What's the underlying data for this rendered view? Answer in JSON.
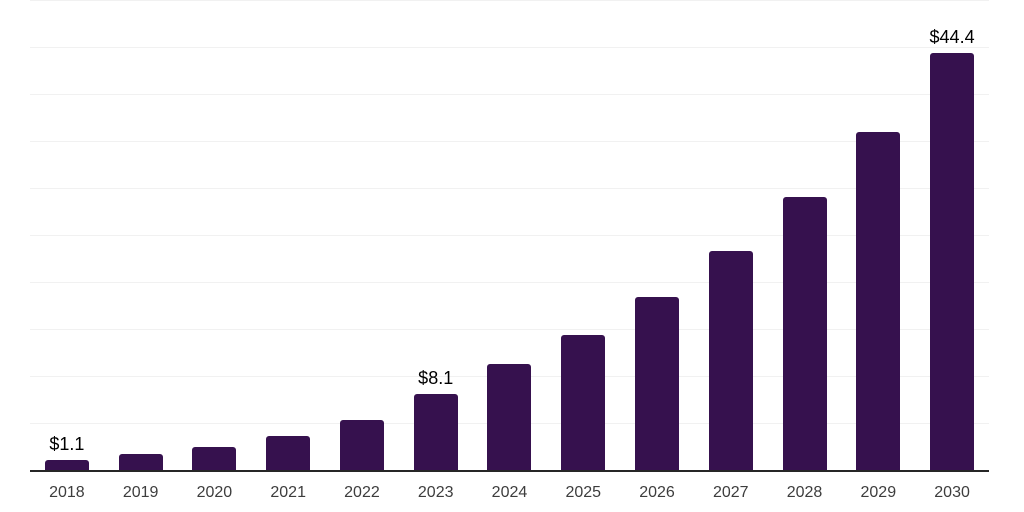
{
  "chart_data": {
    "type": "bar",
    "title": "",
    "xlabel": "",
    "ylabel": "",
    "categories": [
      "2018",
      "2019",
      "2020",
      "2021",
      "2022",
      "2023",
      "2024",
      "2025",
      "2026",
      "2027",
      "2028",
      "2029",
      "2030"
    ],
    "values": [
      1.1,
      1.7,
      2.5,
      3.6,
      5.3,
      8.1,
      11.3,
      14.4,
      18.4,
      23.3,
      29.0,
      36.0,
      44.4
    ],
    "value_labels": [
      "$1.1",
      "",
      "",
      "",
      "",
      "$8.1",
      "",
      "",
      "",
      "",
      "",
      "",
      "$44.4"
    ],
    "ylim": [
      0,
      50
    ],
    "gridline_step": 5,
    "grid": "horizontal-only",
    "legend": "none",
    "colors": {
      "bar": "#36114E",
      "background": "#ffffff",
      "gridline": "#f1f1f1",
      "axis_line": "#262626",
      "tick_label": "#3d3d3d",
      "value_label": "#000000"
    }
  }
}
